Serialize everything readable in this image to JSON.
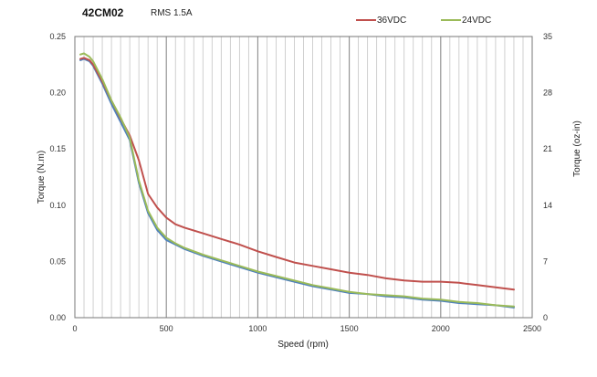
{
  "chart_data": {
    "type": "line",
    "title": "42CM02",
    "subtitle": "RMS 1.5A",
    "xlabel": "Speed (rpm)",
    "ylabel": "Torque (N.m)",
    "y2label": "Torque (oz-in)",
    "xlim": [
      0,
      2500
    ],
    "ylim": [
      0,
      0.25
    ],
    "y2lim": [
      0,
      35
    ],
    "x_ticks": [
      0,
      500,
      1000,
      1500,
      2000,
      2500
    ],
    "y_ticks": [
      "0.00",
      "0.05",
      "0.10",
      "0.15",
      "0.20",
      "0.25"
    ],
    "y2_ticks": [
      "0",
      "7",
      "14",
      "21",
      "28",
      "35"
    ],
    "grid": "vertical",
    "legend_position": "top-right",
    "series": [
      {
        "name": "36VDC",
        "color": "#c0504d",
        "x": [
          30,
          50,
          80,
          100,
          150,
          200,
          250,
          300,
          350,
          400,
          450,
          500,
          550,
          600,
          700,
          800,
          900,
          1000,
          1100,
          1200,
          1300,
          1400,
          1500,
          1600,
          1700,
          1800,
          1900,
          2000,
          2100,
          2200,
          2300,
          2400
        ],
        "y": [
          0.23,
          0.231,
          0.229,
          0.225,
          0.21,
          0.193,
          0.177,
          0.162,
          0.14,
          0.11,
          0.098,
          0.089,
          0.083,
          0.08,
          0.075,
          0.07,
          0.065,
          0.059,
          0.054,
          0.049,
          0.046,
          0.043,
          0.04,
          0.038,
          0.035,
          0.033,
          0.032,
          0.032,
          0.031,
          0.029,
          0.027,
          0.025
        ]
      },
      {
        "name": "24VDC",
        "color": "#9bbb59",
        "x": [
          30,
          50,
          80,
          100,
          150,
          200,
          250,
          300,
          350,
          400,
          450,
          500,
          550,
          600,
          700,
          800,
          900,
          1000,
          1100,
          1200,
          1300,
          1400,
          1500,
          1600,
          1700,
          1800,
          1900,
          2000,
          2100,
          2200,
          2300,
          2400
        ],
        "y": [
          0.234,
          0.235,
          0.232,
          0.228,
          0.212,
          0.193,
          0.178,
          0.16,
          0.122,
          0.095,
          0.08,
          0.071,
          0.066,
          0.062,
          0.056,
          0.051,
          0.046,
          0.041,
          0.037,
          0.033,
          0.029,
          0.026,
          0.023,
          0.021,
          0.02,
          0.019,
          0.017,
          0.016,
          0.014,
          0.013,
          0.011,
          0.01
        ]
      },
      {
        "name": "",
        "color": "#4f81bd",
        "x": [
          30,
          50,
          80,
          100,
          150,
          200,
          250,
          300,
          350,
          400,
          450,
          500,
          550,
          600,
          700,
          800,
          900,
          1000,
          1100,
          1200,
          1300,
          1400,
          1500,
          1600,
          1700,
          1800,
          1900,
          2000,
          2100,
          2200,
          2300,
          2400
        ],
        "y": [
          0.229,
          0.23,
          0.228,
          0.224,
          0.208,
          0.19,
          0.174,
          0.158,
          0.12,
          0.093,
          0.078,
          0.069,
          0.065,
          0.061,
          0.055,
          0.05,
          0.045,
          0.04,
          0.036,
          0.032,
          0.028,
          0.025,
          0.022,
          0.021,
          0.019,
          0.018,
          0.016,
          0.015,
          0.013,
          0.012,
          0.011,
          0.009
        ]
      }
    ]
  }
}
